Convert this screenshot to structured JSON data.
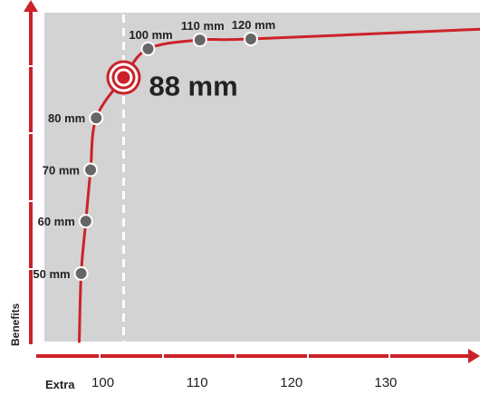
{
  "chart_data": {
    "type": "line",
    "xlabel": "Extra",
    "ylabel": "Benefits",
    "x_ticks": [
      100,
      110,
      120,
      130
    ],
    "xlim": [
      93.8,
      140
    ],
    "ylim": [
      0,
      100
    ],
    "grid": false,
    "series": [
      {
        "points": [
          {
            "label": "50 mm",
            "x": 97.7,
            "y": 20.7
          },
          {
            "label": "60 mm",
            "x": 98.2,
            "y": 36.6
          },
          {
            "label": "70 mm",
            "x": 98.7,
            "y": 52.2
          },
          {
            "label": "80 mm",
            "x": 99.3,
            "y": 68.0
          },
          {
            "label": "100 mm",
            "x": 104.8,
            "y": 89.0
          },
          {
            "label": "110 mm",
            "x": 110.3,
            "y": 91.7
          },
          {
            "label": "120 mm",
            "x": 115.7,
            "y": 92.0
          }
        ],
        "line_end": {
          "x": 140,
          "y": 95.0
        },
        "line_start": {
          "x": 97.5,
          "y": 0
        }
      }
    ],
    "highlight": {
      "label": "88 mm",
      "x": 102.2,
      "y": 80.3,
      "vline_x": 102.2
    },
    "colors": {
      "accent": "#cc2229",
      "point": "#666666",
      "plot_bg": "#d3d3d3",
      "frame": "#ffffff"
    }
  }
}
